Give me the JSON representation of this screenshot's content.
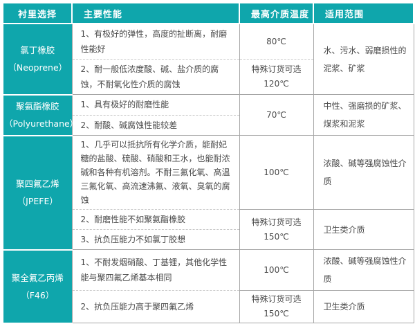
{
  "colors": {
    "accent_teal": "#0fa6ac",
    "grid_border": "#a6a6a6",
    "body_text": "#4a4a4a",
    "header_text": "#ffffff"
  },
  "table": {
    "headers": {
      "lining": "衬里选择",
      "properties": "主要性能",
      "temperature": "最高介质温度",
      "range": "适用范围"
    },
    "groups": [
      {
        "name": "氯丁橡胶",
        "code": "（Neoprene）",
        "rows": [
          {
            "property": "1、有极好的弹性，高度的扯断离，耐磨性能好",
            "temp_note": "",
            "temp_value": "80℃"
          },
          {
            "property": "2、耐一般低浓度酸、碱、盐介质的腐蚀，不耐氧化性介质的腐蚀",
            "temp_note": "特殊订货可选",
            "temp_value": "120℃"
          }
        ],
        "ranges": [
          "水、污水、弱磨损性的泥浆、矿浆"
        ]
      },
      {
        "name": "聚氨酯橡胶",
        "code": "（Polyurethane）",
        "rows": [
          {
            "property": "1、具有极好的耐磨性能"
          },
          {
            "property": "2、耐酸、碱腐蚀性能较差"
          }
        ],
        "temp_merged": {
          "note": "",
          "value": "70℃"
        },
        "ranges": [
          "中性、强磨损的矿浆、煤浆和泥浆"
        ]
      },
      {
        "name": "聚四氟乙烯",
        "code": "（JPEFE）",
        "rows": [
          {
            "property": "1、几乎可以抵抗所有化学介质，能耐妃糖的盐酸、硫酸、硝酸和王水，也能耐浓碱和各种有机溶剂。不耐三氟化氧、高温三氟化氧、高流速沸氟、液氧、臭氧的腐蚀",
            "temp_note": "",
            "temp_value": "100℃"
          },
          {
            "property": "2、耐磨性能不如聚氨酯橡胶",
            "temp_note": "特殊订货可选",
            "temp_value": "150℃"
          },
          {
            "property": "3、抗负压能力不如氯丁胶想"
          }
        ],
        "ranges": [
          "浓酸、碱等强腐蚀性介质",
          "卫生类介质"
        ]
      },
      {
        "name": "聚全氟乙丙烯",
        "code": "（F46）",
        "rows": [
          {
            "property": "1、不耐发烟硝酸、丁基锂，其他化学性能与聚四氟乙烯基本相同",
            "temp_note": "",
            "temp_value": "100℃"
          },
          {
            "property": "2、抗负压能力高于聚四氟乙烯",
            "temp_note": "特殊订货可选",
            "temp_value": "150℃"
          }
        ],
        "ranges": [
          "浓酸、碱等强腐蚀性介质",
          "卫生类介质"
        ]
      }
    ]
  }
}
